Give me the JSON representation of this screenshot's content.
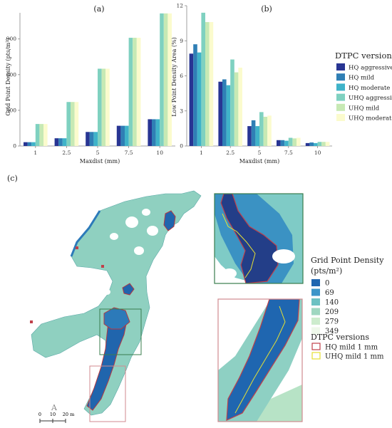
{
  "colors": {
    "hq_aggressive": "#283593",
    "hq_mild": "#2f7fb5",
    "hq_moderate": "#3fb3c9",
    "uhq_aggressive": "#7fd1c0",
    "uhq_mild": "#c7e9b4",
    "uhq_moderate": "#fbfbcd",
    "outline_hq": "#c0404a",
    "outline_uhq": "#e6e033",
    "inset_top": "#3a7d4e",
    "inset_bottom": "#d08a8f"
  },
  "chart_data": [
    {
      "type": "bar",
      "panel_label": "(a)",
      "categories": [
        "1",
        "2.5",
        "5",
        "7.5",
        "10"
      ],
      "xlabel": "Maxdist (mm)",
      "ylabel": "Grid Point Density (pts/m²)",
      "ylim": [
        0,
        1120
      ],
      "yticks": [
        "0",
        "300",
        "600",
        "900"
      ],
      "yticks_values": [
        0,
        300,
        600,
        900
      ],
      "series": [
        {
          "key": "hq_aggressive",
          "values": [
            32,
            65,
            118,
            170,
            225
          ]
        },
        {
          "key": "hq_mild",
          "values": [
            32,
            65,
            118,
            170,
            225
          ]
        },
        {
          "key": "hq_moderate",
          "values": [
            32,
            65,
            118,
            170,
            225
          ]
        },
        {
          "key": "uhq_aggressive",
          "values": [
            185,
            370,
            650,
            910,
            1115
          ]
        },
        {
          "key": "uhq_mild",
          "values": [
            185,
            370,
            650,
            910,
            1115
          ]
        },
        {
          "key": "uhq_moderate",
          "values": [
            185,
            370,
            650,
            910,
            1115
          ]
        }
      ]
    },
    {
      "type": "bar",
      "panel_label": "(b)",
      "categories": [
        "1",
        "2.5",
        "5",
        "7.5",
        "10"
      ],
      "xlabel": "Maxdist (mm)",
      "ylabel": "Low Point Density Area (%)",
      "ylim": [
        0,
        12
      ],
      "yticks": [
        "0",
        "3",
        "6",
        "9",
        "12"
      ],
      "yticks_values": [
        0,
        3,
        6,
        9,
        12
      ],
      "series": [
        {
          "key": "hq_aggressive",
          "values": [
            7.9,
            5.5,
            1.7,
            0.5,
            0.25
          ]
        },
        {
          "key": "hq_mild",
          "values": [
            8.7,
            5.7,
            2.2,
            0.5,
            0.3
          ]
        },
        {
          "key": "hq_moderate",
          "values": [
            8.0,
            5.2,
            1.7,
            0.45,
            0.25
          ]
        },
        {
          "key": "uhq_aggressive",
          "values": [
            11.4,
            7.4,
            2.9,
            0.7,
            0.35
          ]
        },
        {
          "key": "uhq_mild",
          "values": [
            10.6,
            6.3,
            2.5,
            0.65,
            0.35
          ]
        },
        {
          "key": "uhq_moderate",
          "values": [
            10.6,
            6.7,
            2.6,
            0.7,
            0.35
          ]
        }
      ]
    }
  ],
  "legend": {
    "title": "DTPC versions",
    "items": [
      {
        "key": "hq_aggressive",
        "label": "HQ aggressive"
      },
      {
        "key": "hq_mild",
        "label": "HQ mild"
      },
      {
        "key": "hq_moderate",
        "label": "HQ moderate"
      },
      {
        "key": "uhq_aggressive",
        "label": "UHQ aggressive"
      },
      {
        "key": "uhq_mild",
        "label": "UHQ mild"
      },
      {
        "key": "uhq_moderate",
        "label": "UHQ moderate"
      }
    ]
  },
  "map": {
    "panel_label": "(c)",
    "density_legend": {
      "title_line1": "Grid Point Density",
      "title_line2": "(pts/m²)",
      "classes": [
        {
          "label": "0",
          "color": "#1f66b0"
        },
        {
          "label": "69",
          "color": "#3c95c9"
        },
        {
          "label": "140",
          "color": "#6cc1c2"
        },
        {
          "label": "209",
          "color": "#9fd7c0"
        },
        {
          "label": "279",
          "color": "#cdeccd"
        },
        {
          "label": "349",
          "color": "#eef8ea"
        }
      ]
    },
    "outline_legend": {
      "title": "DTPC versions",
      "items": [
        {
          "key": "outline_hq",
          "label": "HQ mild 1 mm"
        },
        {
          "key": "outline_uhq",
          "label": "UHQ mild 1 mm"
        }
      ]
    },
    "north_label": "A",
    "scale_labels": [
      "0",
      "10",
      "20 m"
    ]
  }
}
